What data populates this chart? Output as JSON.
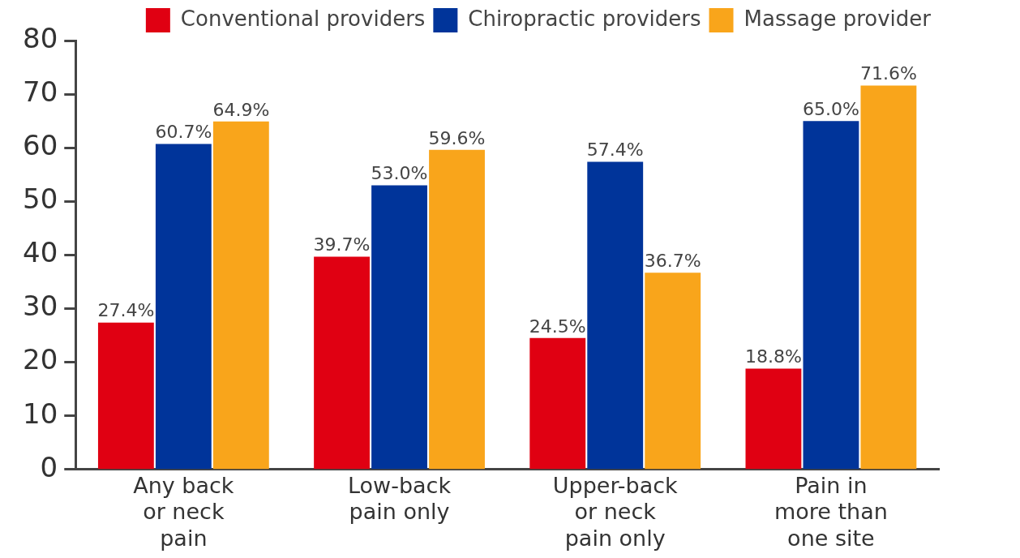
{
  "chart_data": {
    "type": "bar",
    "categories": [
      "Any back or neck pain",
      "Low-back pain only",
      "Upper-back or neck pain only",
      "Pain in more than one site"
    ],
    "series": [
      {
        "name": "Conventional providers",
        "color": "#e00012",
        "values": [
          27.4,
          39.7,
          24.5,
          18.8
        ],
        "value_labels": [
          "27.4%",
          "39.7%",
          "24.5%",
          "18.8%"
        ]
      },
      {
        "name": "Chiropractic providers",
        "color": "#00349a",
        "values": [
          60.7,
          53.0,
          57.4,
          65.0
        ],
        "value_labels": [
          "60.7%",
          "53.0%",
          "57.4%",
          "65.0%"
        ]
      },
      {
        "name": "Massage provider",
        "color": "#f9a51b",
        "values": [
          64.9,
          59.6,
          36.7,
          71.6
        ],
        "value_labels": [
          "64.9%",
          "59.6%",
          "36.7%",
          "71.6%"
        ]
      }
    ],
    "ylim": [
      0,
      80
    ],
    "yticks": [
      0,
      10,
      20,
      30,
      40,
      50,
      60,
      70,
      80
    ],
    "grid": false,
    "legend": "top"
  }
}
